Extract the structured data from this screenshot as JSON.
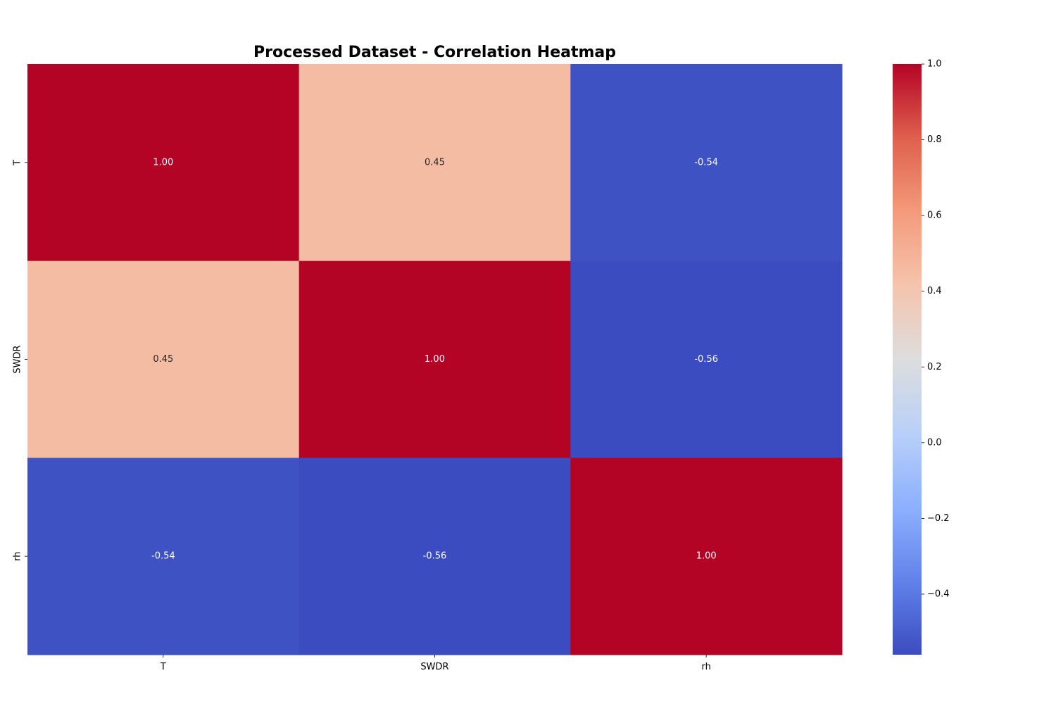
{
  "chart_data": {
    "type": "heatmap",
    "title": "Processed Dataset - Correlation Heatmap",
    "xlabel": "",
    "ylabel": "",
    "x_categories": [
      "T",
      "SWDR",
      "rh"
    ],
    "y_categories": [
      "T",
      "SWDR",
      "rh"
    ],
    "values": [
      [
        1.0,
        0.45,
        -0.54
      ],
      [
        0.45,
        1.0,
        -0.56
      ],
      [
        -0.54,
        -0.56,
        1.0
      ]
    ],
    "value_labels": [
      [
        "1.00",
        "0.45",
        "-0.54"
      ],
      [
        "0.45",
        "1.00",
        "-0.56"
      ],
      [
        "-0.54",
        "-0.56",
        "1.00"
      ]
    ],
    "colormap": "coolwarm",
    "colorbar": {
      "range": [
        -0.56,
        1.0
      ],
      "ticks": [
        1.0,
        0.8,
        0.6,
        0.4,
        0.2,
        0.0,
        -0.2,
        -0.4
      ],
      "tick_labels": [
        "1.0",
        "0.8",
        "0.6",
        "0.4",
        "0.2",
        "0.0",
        "−0.2",
        "−0.4"
      ],
      "placement": "right"
    }
  }
}
